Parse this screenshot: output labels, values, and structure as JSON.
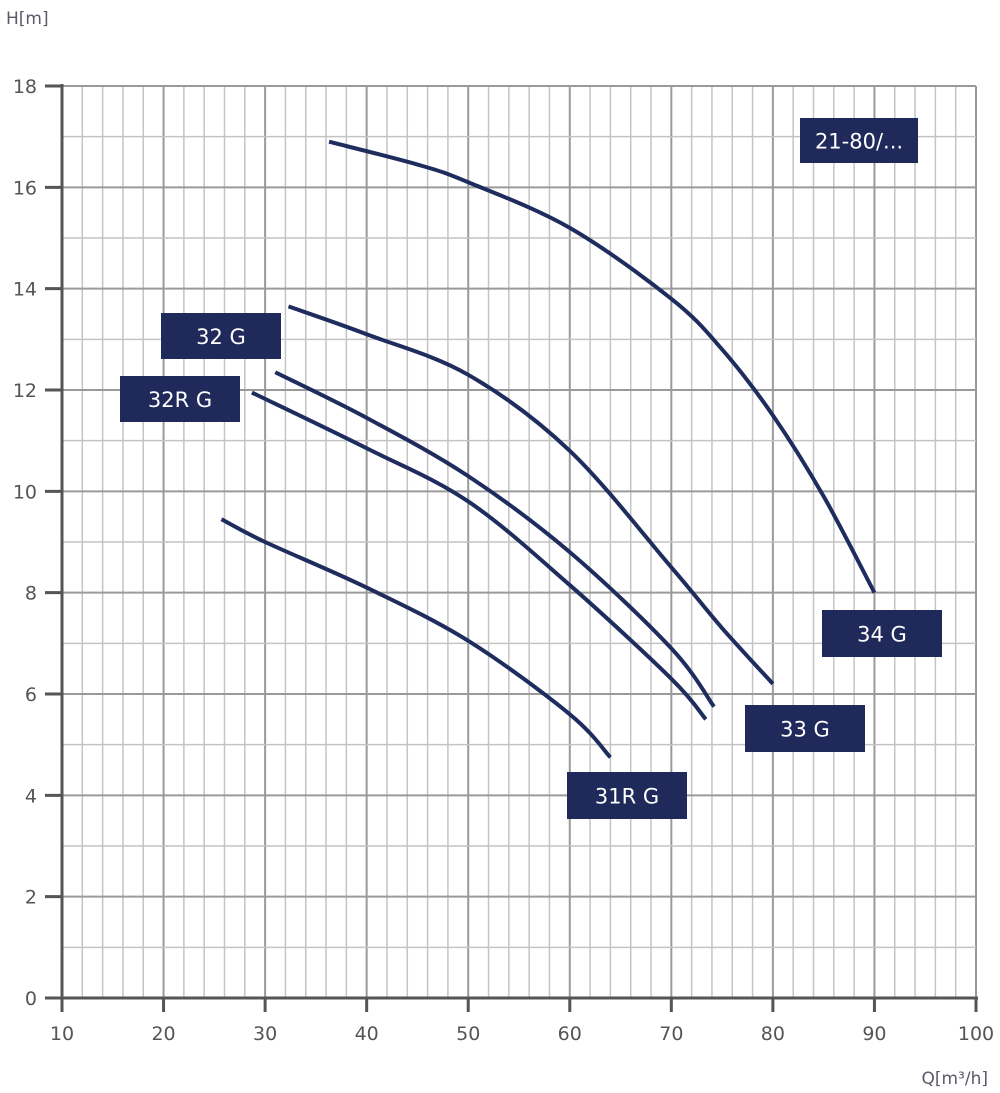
{
  "chart_data": {
    "type": "line",
    "title": "21-80/...",
    "xlabel": "Q[m³/h]",
    "ylabel": "H[m]",
    "xlim": [
      10,
      100
    ],
    "ylim": [
      0,
      18
    ],
    "xticks": [
      "10",
      "20",
      "30",
      "40",
      "50",
      "60",
      "70",
      "80",
      "90",
      "100"
    ],
    "yticks": [
      "0",
      "2",
      "4",
      "6",
      "8",
      "10",
      "12",
      "14",
      "16",
      "18"
    ],
    "grid": true,
    "colors": {
      "curve": "#1f2d5e",
      "label_bg": "#1f2a5a",
      "grid": "#b9b9b9",
      "axis": "#555555"
    },
    "series": [
      {
        "name": "34 G",
        "x": [
          36.3,
          45,
          50,
          60,
          70,
          75,
          80,
          85,
          90
        ],
        "y": [
          16.9,
          16.45,
          16.1,
          15.2,
          13.8,
          12.8,
          11.5,
          9.9,
          8.0
        ]
      },
      {
        "name": "33 G",
        "x": [
          32.3,
          40,
          50,
          60,
          70,
          75,
          80
        ],
        "y": [
          13.65,
          13.1,
          12.3,
          10.8,
          8.5,
          7.3,
          6.2
        ]
      },
      {
        "name": "32 G",
        "x": [
          31.0,
          40,
          50,
          60,
          70,
          74.2
        ],
        "y": [
          12.35,
          11.45,
          10.3,
          8.8,
          6.9,
          5.75
        ]
      },
      {
        "name": "32R G",
        "x": [
          28.7,
          40,
          50,
          60,
          70,
          73.4
        ],
        "y": [
          11.95,
          10.85,
          9.8,
          8.15,
          6.3,
          5.5
        ]
      },
      {
        "name": "31R G",
        "x": [
          25.7,
          30,
          40,
          50,
          60,
          64.0
        ],
        "y": [
          9.45,
          9.0,
          8.1,
          7.05,
          5.6,
          4.75
        ]
      }
    ]
  }
}
